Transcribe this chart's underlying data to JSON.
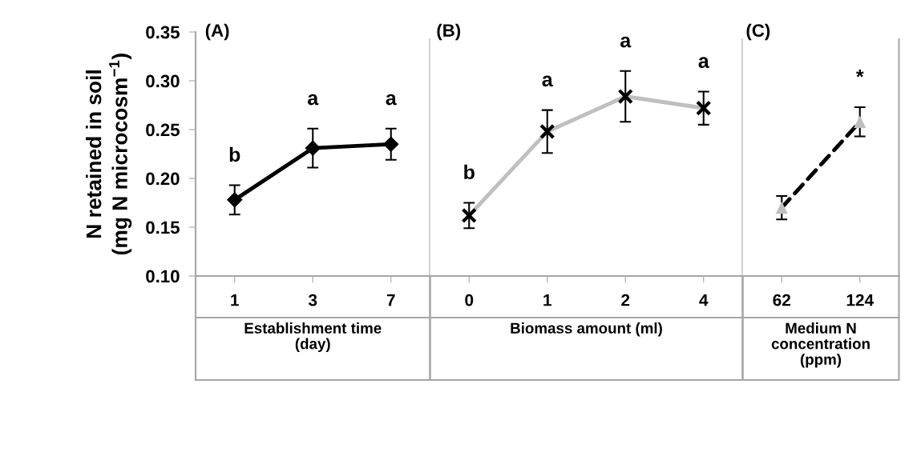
{
  "chart_data": [
    {
      "type": "line",
      "title": "(A)",
      "xlabel": "Establishment time\n(day)",
      "ylabel": "N retained in soil\n(mg N microcosm$^{−1}$)",
      "categories": [
        "1",
        "3",
        "7"
      ],
      "series": [
        {
          "color": "#000000",
          "colors": [
            "#000000",
            "#000000",
            "#000000"
          ],
          "values": [
            0.178,
            0.231,
            0.235
          ],
          "errors": [
            0.015,
            0.02,
            0.016
          ]
        }
      ],
      "marker": "diamond",
      "line_style": "solid",
      "ylim": [
        0.1,
        0.35
      ],
      "yticks": [
        {
          "value": 0.1,
          "label": "0.10"
        },
        {
          "value": 0.15,
          "label": "0.15"
        },
        {
          "value": 0.2,
          "label": "0.20"
        },
        {
          "value": 0.25,
          "label": "0.25"
        },
        {
          "value": 0.3,
          "label": "0.30"
        },
        {
          "value": 0.35,
          "label": "0.35"
        }
      ],
      "grid": false,
      "annotations": [
        {
          "text": "b",
          "x": "1",
          "y": 0.178
        },
        {
          "text": "a",
          "x": "3",
          "y": 0.231
        },
        {
          "text": "a",
          "x": "7",
          "y": 0.235
        }
      ]
    },
    {
      "type": "line",
      "title": "(B)",
      "xlabel": "Biomass amount (ml)",
      "categories": [
        "0",
        "1",
        "2",
        "4"
      ],
      "series": [
        {
          "color": "#bfbfbf",
          "colors": [
            "#000000",
            "#000000",
            "#000000",
            "#000000"
          ],
          "values": [
            0.162,
            0.248,
            0.284,
            0.272
          ],
          "errors": [
            0.013,
            0.022,
            0.026,
            0.017
          ]
        }
      ],
      "marker": "cross",
      "line_style": "solid",
      "ylim": [
        0.1,
        0.35
      ],
      "tick_labels": "x",
      "grid": false,
      "annotations": [
        {
          "text": "b",
          "x": "0",
          "y": 0.162
        },
        {
          "text": "a",
          "x": "1",
          "y": 0.248
        },
        {
          "text": "a",
          "x": "2",
          "y": 0.284
        },
        {
          "text": "a",
          "x": "4",
          "y": 0.272
        }
      ]
    },
    {
      "type": "line",
      "title": "(C)",
      "xlabel": "Medium N\nconcentration\n(ppm)",
      "categories": [
        "62",
        "124"
      ],
      "series": [
        {
          "color": "#000000",
          "colors": [
            "#bfbfbf",
            "#bfbfbf"
          ],
          "values": [
            0.17,
            0.258
          ],
          "errors": [
            0.012,
            0.015
          ]
        }
      ],
      "marker": "triangle",
      "line_style": "dashed",
      "ylim": [
        0.1,
        0.35
      ],
      "tick_labels": "x",
      "grid": false,
      "annotations": [
        {
          "text": "*",
          "x": "124",
          "y": 0.258
        }
      ]
    }
  ]
}
